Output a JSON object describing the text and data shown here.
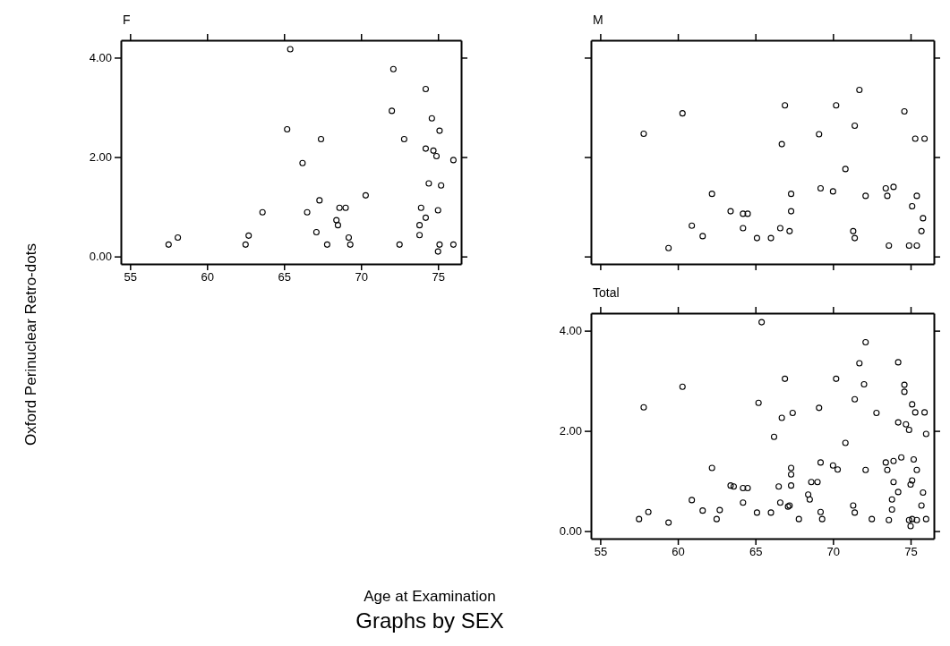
{
  "chart_data": [
    {
      "type": "scatter",
      "title": "F",
      "ylabel": "Oxford Perinuclear Retro-dots",
      "xlim": [
        54.4,
        76.5
      ],
      "ylim": [
        -0.15,
        4.35
      ],
      "xticks": [
        55,
        60,
        65,
        70,
        75
      ],
      "yticks": [
        {
          "value": 0,
          "label": "0.00"
        },
        {
          "value": 2,
          "label": "2.00"
        },
        {
          "value": 4,
          "label": "4.00"
        }
      ],
      "marker": "circle",
      "grid": false,
      "series": [
        {
          "color": "#000000",
          "x": [
            57.5,
            58.1,
            62.5,
            62.7,
            63.6,
            65.4,
            65.2,
            66.2,
            66.5,
            67.4,
            67.3,
            67.1,
            67.8,
            68.4,
            68.5,
            68.6,
            69.0,
            69.2,
            69.3,
            70.3,
            72.0,
            72.1,
            72.5,
            72.8,
            73.8,
            73.8,
            73.9,
            74.2,
            74.2,
            74.2,
            74.4,
            74.6,
            74.7,
            74.9,
            75.0,
            75.1,
            75.2,
            75.0,
            75.1,
            76.0,
            76.0
          ],
          "values": [
            0.24,
            0.38,
            0.24,
            0.42,
            0.89,
            4.17,
            2.56,
            1.88,
            0.89,
            2.36,
            1.13,
            0.49,
            0.24,
            0.73,
            0.63,
            0.98,
            0.98,
            0.38,
            0.24,
            1.23,
            2.93,
            3.77,
            0.24,
            2.36,
            0.63,
            0.43,
            0.98,
            0.78,
            3.37,
            2.17,
            1.47,
            2.78,
            2.13,
            2.02,
            0.93,
            2.53,
            1.43,
            0.1,
            0.24,
            0.24,
            1.94
          ]
        }
      ]
    },
    {
      "type": "scatter",
      "title": "M",
      "xlim": [
        54.4,
        76.5
      ],
      "ylim": [
        -0.15,
        4.35
      ],
      "xticks": [
        {
          "value": 55,
          "label": null
        },
        {
          "value": 60,
          "label": null
        },
        {
          "value": 65,
          "label": null
        },
        {
          "value": 70,
          "label": null
        },
        {
          "value": 75,
          "label": null
        }
      ],
      "yticks": [
        {
          "value": 0,
          "label": null
        },
        {
          "value": 2,
          "label": null
        },
        {
          "value": 4,
          "label": null
        }
      ],
      "tick_labels": false,
      "marker": "circle",
      "grid": false,
      "series": [
        {
          "color": "#000000",
          "x": [
            57.8,
            59.4,
            60.3,
            60.9,
            61.6,
            62.2,
            63.4,
            64.2,
            64.5,
            64.2,
            65.1,
            66.0,
            66.6,
            66.7,
            66.9,
            67.2,
            67.3,
            67.3,
            69.1,
            69.2,
            70.0,
            70.2,
            70.8,
            71.3,
            71.4,
            71.4,
            71.7,
            72.1,
            73.4,
            73.5,
            73.9,
            73.6,
            74.6,
            74.9,
            75.1,
            75.4,
            75.3,
            75.4,
            75.9,
            75.8,
            75.7
          ],
          "values": [
            2.47,
            0.17,
            2.88,
            0.62,
            0.41,
            1.26,
            0.91,
            0.86,
            0.86,
            0.57,
            0.37,
            0.37,
            0.57,
            2.26,
            3.04,
            0.51,
            0.91,
            1.26,
            2.46,
            1.37,
            1.31,
            3.04,
            1.76,
            0.51,
            0.37,
            2.63,
            3.35,
            1.22,
            1.37,
            1.22,
            1.4,
            0.22,
            2.92,
            0.22,
            1.01,
            0.22,
            2.37,
            1.22,
            2.37,
            0.77,
            0.51
          ]
        }
      ]
    },
    {
      "type": "scatter",
      "title": "Total",
      "xlabel": "Age at Examination",
      "annotations": [
        "Graphs by SEX"
      ],
      "xlim": [
        54.4,
        76.5
      ],
      "ylim": [
        -0.15,
        4.35
      ],
      "xticks": [
        55,
        60,
        65,
        70,
        75
      ],
      "yticks": [
        {
          "value": 0,
          "label": "0.00"
        },
        {
          "value": 2,
          "label": "2.00"
        },
        {
          "value": 4,
          "label": "4.00"
        }
      ],
      "marker": "circle",
      "grid": false,
      "series": [
        {
          "color": "#000000",
          "x": [
            57.5,
            58.1,
            62.5,
            62.7,
            63.6,
            65.4,
            65.2,
            66.2,
            66.5,
            67.4,
            67.3,
            67.1,
            67.8,
            68.4,
            68.5,
            68.6,
            69.0,
            69.2,
            69.3,
            70.3,
            72.0,
            72.1,
            72.5,
            72.8,
            73.8,
            73.8,
            73.9,
            74.2,
            74.2,
            74.2,
            74.4,
            74.6,
            74.7,
            74.9,
            75.0,
            75.1,
            75.2,
            75.0,
            75.1,
            76.0,
            76.0,
            57.8,
            59.4,
            60.3,
            60.9,
            61.6,
            62.2,
            63.4,
            64.2,
            64.5,
            64.2,
            65.1,
            66.0,
            66.6,
            66.7,
            66.9,
            67.2,
            67.3,
            67.3,
            69.1,
            69.2,
            70.0,
            70.2,
            70.8,
            71.3,
            71.4,
            71.4,
            71.7,
            72.1,
            73.4,
            73.5,
            73.9,
            73.6,
            74.6,
            74.9,
            75.1,
            75.4,
            75.3,
            75.4,
            75.9,
            75.8,
            75.7
          ],
          "values": [
            0.24,
            0.38,
            0.24,
            0.42,
            0.89,
            4.17,
            2.56,
            1.88,
            0.89,
            2.36,
            1.13,
            0.49,
            0.24,
            0.73,
            0.63,
            0.98,
            0.98,
            0.38,
            0.24,
            1.23,
            2.93,
            3.77,
            0.24,
            2.36,
            0.63,
            0.43,
            0.98,
            0.78,
            3.37,
            2.17,
            1.47,
            2.78,
            2.13,
            2.02,
            0.93,
            2.53,
            1.43,
            0.1,
            0.24,
            0.24,
            1.94,
            2.47,
            0.17,
            2.88,
            0.62,
            0.41,
            1.26,
            0.91,
            0.86,
            0.86,
            0.57,
            0.37,
            0.37,
            0.57,
            2.26,
            3.04,
            0.51,
            0.91,
            1.26,
            2.46,
            1.37,
            1.31,
            3.04,
            1.76,
            0.51,
            0.37,
            2.63,
            3.35,
            1.22,
            1.37,
            1.22,
            1.4,
            0.22,
            2.92,
            0.22,
            1.01,
            0.22,
            2.37,
            1.22,
            2.37,
            0.77,
            0.51
          ]
        }
      ]
    }
  ]
}
